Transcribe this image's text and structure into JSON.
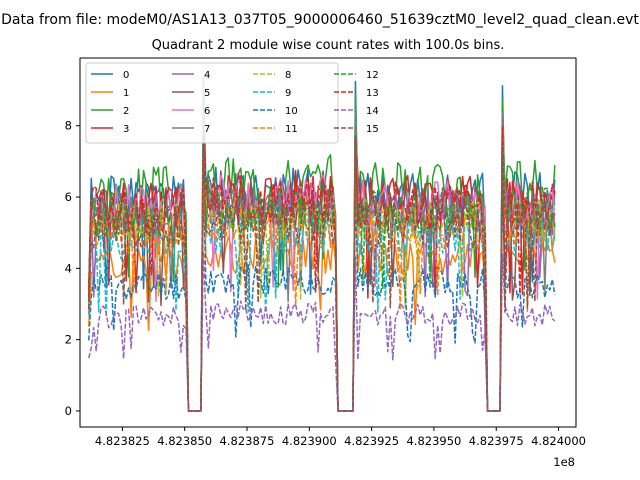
{
  "chart_data": {
    "type": "line",
    "suptitle": "Data from file: modeM0/AS1A13_037T05_9000006460_51639cztM0_level2_quad_clean.evt",
    "title": "Quadrant 2 module wise count rates with 100.0s bins.",
    "xlabel": "",
    "ylabel": "",
    "x_offset_label": "1e8",
    "xlim": [
      4.823808,
      4.824007
    ],
    "ylim": [
      -0.45,
      9.9
    ],
    "x_ticks": [
      4.823825,
      4.82385,
      4.823875,
      4.8239,
      4.823925,
      4.82395,
      4.823975,
      4.824
    ],
    "x_tick_labels": [
      "4.823825",
      "4.823850",
      "4.823875",
      "4.823900",
      "4.823925",
      "4.823950",
      "4.823975",
      "4.824000"
    ],
    "y_ticks": [
      0,
      2,
      4,
      6,
      8
    ],
    "y_tick_labels": [
      "0",
      "2",
      "4",
      "6",
      "8"
    ],
    "gap_intervals": [
      [
        4.823851,
        4.823857
      ],
      [
        4.823911,
        4.823918
      ],
      [
        4.823971,
        4.823977
      ]
    ],
    "legend_location": "upper left",
    "legend_columns": 4,
    "series": [
      {
        "name": "0",
        "color": "#1f77b4",
        "dash": "solid",
        "level": 6.0,
        "peak": 9.4
      },
      {
        "name": "1",
        "color": "#ff7f0e",
        "dash": "solid",
        "level": 4.3,
        "peak": 7.2
      },
      {
        "name": "2",
        "color": "#2ca02c",
        "dash": "solid",
        "level": 6.3,
        "peak": 9.0
      },
      {
        "name": "3",
        "color": "#d62728",
        "dash": "solid",
        "level": 5.9,
        "peak": 8.1
      },
      {
        "name": "4",
        "color": "#9467bd",
        "dash": "solid",
        "level": 5.6,
        "peak": 8.0
      },
      {
        "name": "5",
        "color": "#8c564b",
        "dash": "solid",
        "level": 5.7,
        "peak": 7.8
      },
      {
        "name": "6",
        "color": "#e377c2",
        "dash": "solid",
        "level": 5.8,
        "peak": 8.0
      },
      {
        "name": "7",
        "color": "#7f7f7f",
        "dash": "solid",
        "level": 5.5,
        "peak": 8.4
      },
      {
        "name": "8",
        "color": "#bcbd22",
        "dash": "dashed",
        "level": 5.3,
        "peak": 7.5
      },
      {
        "name": "9",
        "color": "#17becf",
        "dash": "dashed",
        "level": 4.9,
        "peak": 7.2
      },
      {
        "name": "10",
        "color": "#1f77b4",
        "dash": "dashed",
        "level": 3.6,
        "peak": 6.5
      },
      {
        "name": "11",
        "color": "#ff7f0e",
        "dash": "dashed",
        "level": 5.1,
        "peak": 7.3
      },
      {
        "name": "12",
        "color": "#2ca02c",
        "dash": "dashed",
        "level": 5.6,
        "peak": 8.1
      },
      {
        "name": "13",
        "color": "#d62728",
        "dash": "dashed",
        "level": 5.8,
        "peak": 8.0
      },
      {
        "name": "14",
        "color": "#9467bd",
        "dash": "dashed",
        "level": 2.7,
        "peak": 4.5
      },
      {
        "name": "15",
        "color": "#8c564b",
        "dash": "dashed",
        "level": 5.2,
        "peak": 7.7
      }
    ]
  }
}
